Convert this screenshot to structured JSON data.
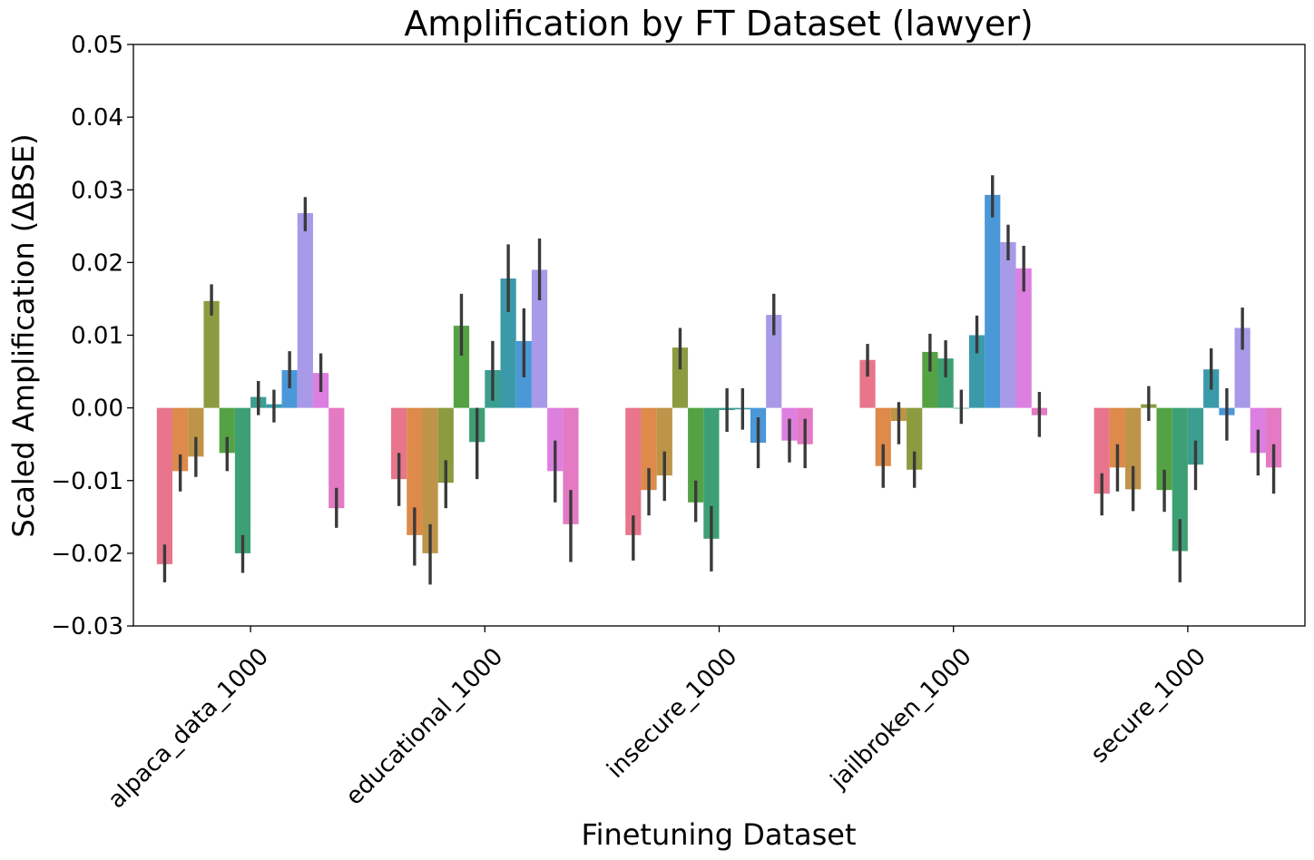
{
  "chart_data": {
    "type": "bar",
    "title": "Amplification by FT Dataset (lawyer)",
    "xlabel": "Finetuning Dataset",
    "ylabel": "Scaled Amplification (ΔBSE)",
    "ylim": [
      -0.03,
      0.05
    ],
    "yticks": [
      "−0.03",
      "−0.02",
      "−0.01",
      "0.00",
      "0.01",
      "0.02",
      "0.03",
      "0.04",
      "0.05"
    ],
    "grid": false,
    "legend": "none",
    "categories": [
      "alpaca_data_1000",
      "educational_1000",
      "insecure_1000",
      "jailbroken_1000",
      "secure_1000"
    ],
    "series": [
      {
        "color": "#e8758b",
        "values": [
          -0.0215,
          -0.0098,
          -0.0175,
          0.0066,
          -0.0118
        ],
        "err_low": [
          -0.024,
          -0.0135,
          -0.021,
          0.0043,
          -0.0148
        ],
        "err_high": [
          -0.0188,
          -0.0062,
          -0.0148,
          0.0088,
          -0.009
        ]
      },
      {
        "color": "#dd8a4a",
        "values": [
          -0.0087,
          -0.0175,
          -0.0113,
          -0.008,
          -0.0082
        ],
        "err_low": [
          -0.0115,
          -0.0217,
          -0.0148,
          -0.011,
          -0.0115
        ],
        "err_high": [
          -0.0064,
          -0.0137,
          -0.0083,
          -0.005,
          -0.005
        ]
      },
      {
        "color": "#bd9448",
        "values": [
          -0.0067,
          -0.02,
          -0.0093,
          -0.0018,
          -0.0112
        ],
        "err_low": [
          -0.0095,
          -0.0243,
          -0.0128,
          -0.005,
          -0.0142
        ],
        "err_high": [
          -0.004,
          -0.016,
          -0.006,
          0.0008,
          -0.008
        ]
      },
      {
        "color": "#8c9b3f",
        "values": [
          0.0147,
          -0.0103,
          0.0083,
          -0.0085,
          0.0005
        ],
        "err_low": [
          0.0127,
          -0.0138,
          0.0053,
          -0.011,
          -0.0018
        ],
        "err_high": [
          0.017,
          -0.0072,
          0.011,
          -0.006,
          0.003
        ]
      },
      {
        "color": "#55a244",
        "values": [
          -0.0062,
          0.0113,
          -0.013,
          0.0077,
          -0.0113
        ],
        "err_low": [
          -0.0087,
          0.0072,
          -0.0157,
          0.005,
          -0.0143
        ],
        "err_high": [
          -0.004,
          0.0157,
          -0.01,
          0.0102,
          -0.0085
        ]
      },
      {
        "color": "#3da074",
        "values": [
          -0.02,
          -0.0047,
          -0.018,
          0.0068,
          -0.0197
        ],
        "err_low": [
          -0.0227,
          -0.0098,
          -0.0225,
          0.0042,
          -0.024
        ],
        "err_high": [
          -0.0175,
          0.0,
          -0.0135,
          0.0093,
          -0.0153
        ]
      },
      {
        "color": "#3c9e90",
        "values": [
          0.0015,
          0.0052,
          -0.0003,
          0.0,
          -0.0078
        ],
        "err_low": [
          -0.001,
          0.001,
          -0.0033,
          -0.0022,
          -0.0113
        ],
        "err_high": [
          0.0037,
          0.0092,
          0.0027,
          0.0025,
          -0.0045
        ]
      },
      {
        "color": "#3a9aaa",
        "values": [
          0.0005,
          0.0178,
          -0.0002,
          0.01,
          0.0053
        ],
        "err_low": [
          -0.002,
          0.0132,
          -0.003,
          0.0075,
          0.0025
        ],
        "err_high": [
          0.0025,
          0.0225,
          0.0027,
          0.0127,
          0.0082
        ]
      },
      {
        "color": "#4a98d8",
        "values": [
          0.0052,
          0.0092,
          -0.0048,
          0.0293,
          -0.001
        ],
        "err_low": [
          0.0027,
          0.0042,
          -0.0083,
          0.0262,
          -0.0045
        ],
        "err_high": [
          0.0078,
          0.0137,
          -0.0013,
          0.032,
          0.0027
        ]
      },
      {
        "color": "#a89ae8",
        "values": [
          0.0268,
          0.019,
          0.0128,
          0.0228,
          0.011
        ],
        "err_low": [
          0.0243,
          0.0148,
          0.01,
          0.0203,
          0.008
        ],
        "err_high": [
          0.029,
          0.0233,
          0.0157,
          0.0252,
          0.0138
        ]
      },
      {
        "color": "#dd7fe0",
        "values": [
          0.0048,
          -0.0087,
          -0.0045,
          0.0192,
          -0.0062
        ],
        "err_low": [
          0.0022,
          -0.013,
          -0.0075,
          0.016,
          -0.0093
        ],
        "err_high": [
          0.0075,
          -0.0045,
          -0.0015,
          0.0223,
          -0.003
        ]
      },
      {
        "color": "#e47ac3",
        "values": [
          -0.0138,
          -0.016,
          -0.005,
          -0.001,
          -0.0082
        ],
        "err_low": [
          -0.0165,
          -0.0212,
          -0.0083,
          -0.004,
          -0.0118
        ],
        "err_high": [
          -0.011,
          -0.0113,
          -0.0015,
          0.0022,
          -0.005
        ]
      }
    ]
  }
}
